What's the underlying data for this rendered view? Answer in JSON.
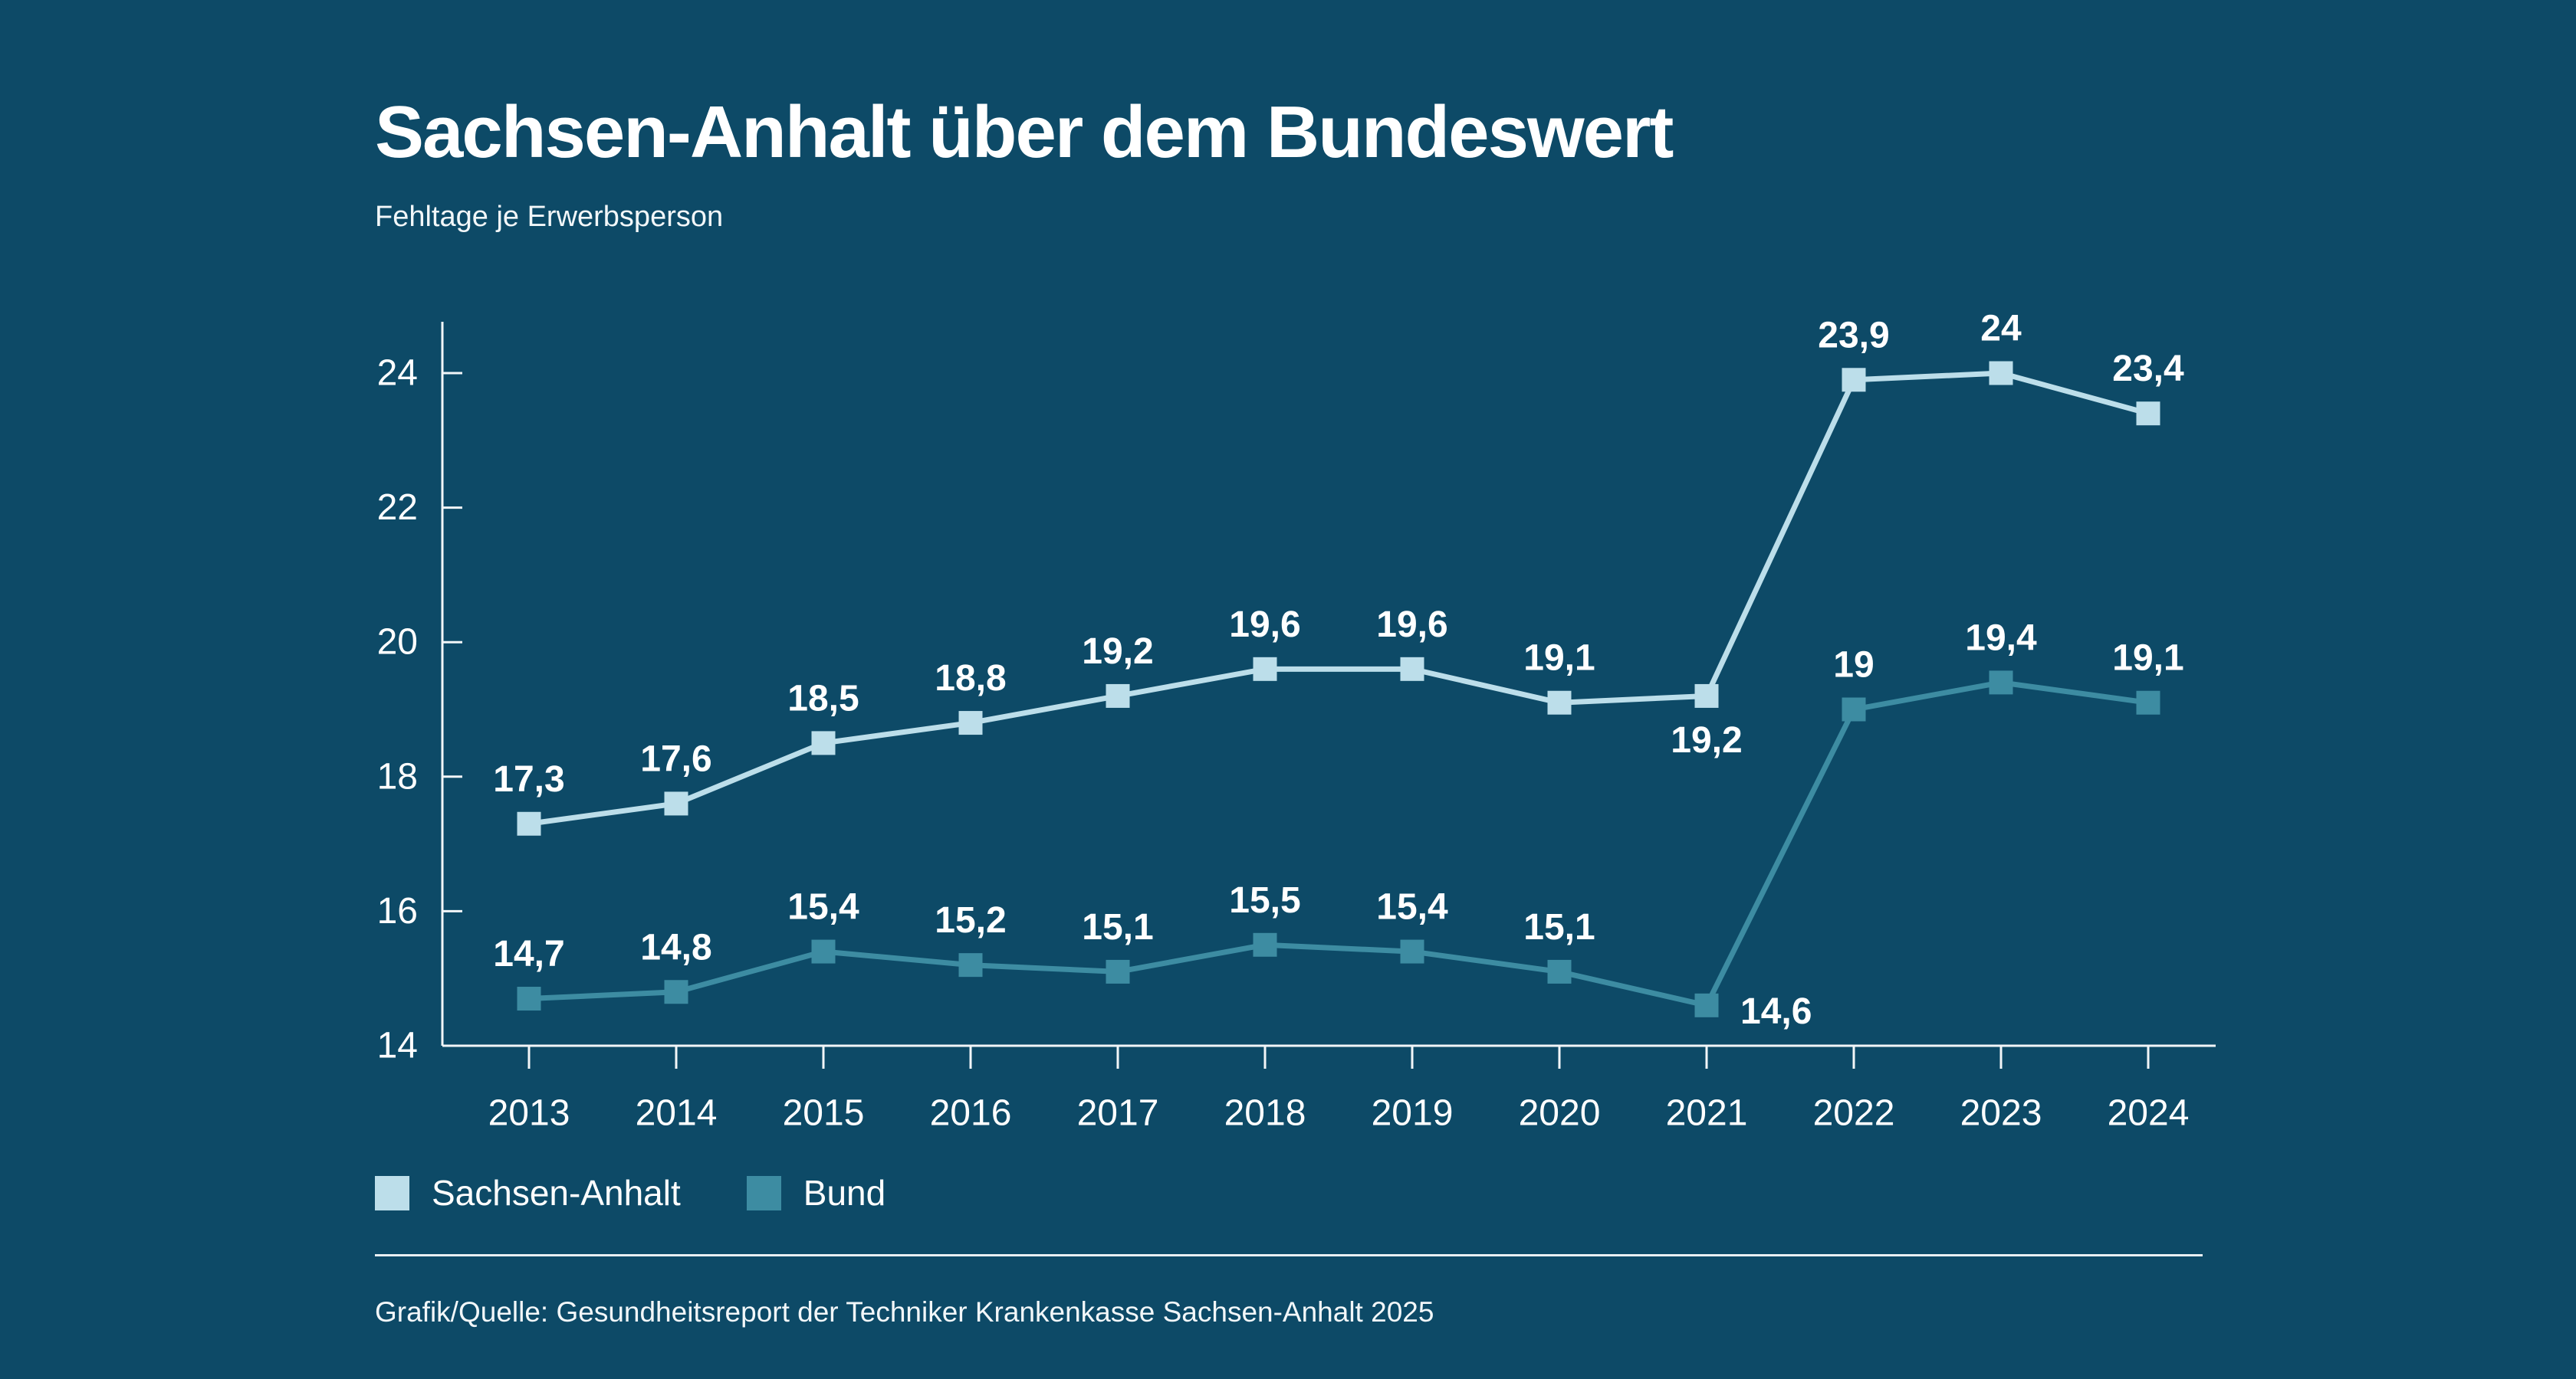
{
  "page": {
    "title": "Sachsen-Anhalt über dem Bundeswert",
    "subtitle": "Fehltage je Erwerbsperson",
    "footer": "Grafik/Quelle: Gesundheitsreport der Techniker Krankenkasse Sachsen-Anhalt 2025",
    "background_color": "#0D4A67",
    "text_color": "#FFFFFF",
    "axis_color": "#F2F6F8"
  },
  "legend": {
    "items": [
      {
        "label": "Sachsen-Anhalt",
        "color": "#BCDEEA"
      },
      {
        "label": "Bund",
        "color": "#3D8CA2"
      }
    ]
  },
  "chart_data": {
    "type": "line",
    "title": "Sachsen-Anhalt über dem Bundeswert",
    "subtitle": "Fehltage je Erwerbsperson",
    "categories": [
      "2013",
      "2014",
      "2015",
      "2016",
      "2017",
      "2018",
      "2019",
      "2020",
      "2021",
      "2022",
      "2023",
      "2024"
    ],
    "series": [
      {
        "name": "Sachsen-Anhalt",
        "color": "#BCDEEA",
        "values": [
          17.3,
          17.6,
          18.5,
          18.8,
          19.2,
          19.6,
          19.6,
          19.1,
          19.2,
          23.9,
          24,
          23.4
        ],
        "display_values": [
          "17,3",
          "17,6",
          "18,5",
          "18,8",
          "19,2",
          "19,6",
          "19,6",
          "19,1",
          "19,2",
          "23,9",
          "24",
          "23,4"
        ],
        "label_positions": [
          "above",
          "above",
          "above",
          "above",
          "above",
          "above",
          "above",
          "above",
          "below",
          "above",
          "above",
          "above"
        ]
      },
      {
        "name": "Bund",
        "color": "#3D8CA2",
        "values": [
          14.7,
          14.8,
          15.4,
          15.2,
          15.1,
          15.5,
          15.4,
          15.1,
          14.6,
          19,
          19.4,
          19.1
        ],
        "display_values": [
          "14,7",
          "14,8",
          "15,4",
          "15,2",
          "15,1",
          "15,5",
          "15,4",
          "15,1",
          "14,6",
          "19",
          "19,4",
          "19,1"
        ],
        "label_positions": [
          "above",
          "above",
          "above",
          "above",
          "above",
          "above",
          "above",
          "above",
          "right",
          "above",
          "above",
          "above"
        ]
      }
    ],
    "xlabel": "",
    "ylabel": "",
    "yticks": [
      14,
      16,
      18,
      20,
      22,
      24
    ],
    "ytick_labels": [
      "14",
      "16",
      "18",
      "20",
      "22",
      "24"
    ],
    "ylim": [
      14,
      24.8
    ],
    "grid": false,
    "marker": "square",
    "legend_position": "bottom-left"
  }
}
